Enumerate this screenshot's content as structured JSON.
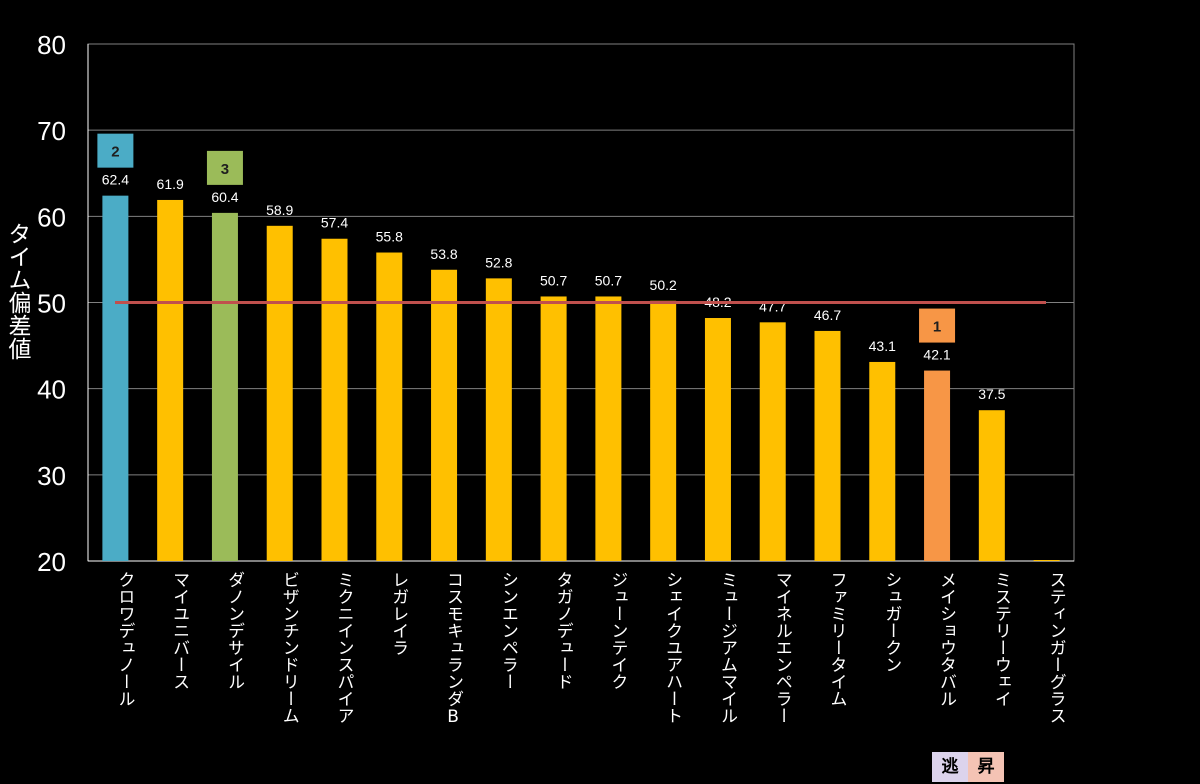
{
  "chart_data": {
    "type": "bar",
    "ylabel": "タイム偏差値",
    "ylim": [
      20,
      80
    ],
    "yticks": [
      20,
      30,
      40,
      50,
      60,
      70,
      80
    ],
    "grid": true,
    "reference_line": 50,
    "categories": [
      "クロワデュノール",
      "マイユニバース",
      "ダノンデサイル",
      "ビザンチンドリーム",
      "ミクニインスパイア",
      "レガレイラ",
      "コスモキュランダB",
      "シンエンペラー",
      "タガノデュード",
      "ジューンテイク",
      "シェイクユアハート",
      "ミュージアムマイル",
      "マイネルエンペラー",
      "ファミリータイム",
      "シュガークン",
      "メイショウタバル",
      "ミステリーウェイ",
      "スティンガーグラス"
    ],
    "values": [
      62.4,
      61.9,
      60.4,
      58.9,
      57.4,
      55.8,
      53.8,
      52.8,
      50.7,
      50.7,
      50.2,
      48.2,
      47.7,
      46.7,
      43.1,
      42.1,
      37.5,
      20
    ],
    "value_labels": [
      "62.4",
      "61.9",
      "60.4",
      "58.9",
      "57.4",
      "55.8",
      "53.8",
      "52.8",
      "50.7",
      "50.7",
      "50.2",
      "48.2",
      "47.7",
      "46.7",
      "43.1",
      "42.1",
      "37.5",
      ""
    ],
    "bar_colors": [
      "#4bacc6",
      "#ffc000",
      "#9bbb59",
      "#ffc000",
      "#ffc000",
      "#ffc000",
      "#ffc000",
      "#ffc000",
      "#ffc000",
      "#ffc000",
      "#ffc000",
      "#ffc000",
      "#ffc000",
      "#ffc000",
      "#ffc000",
      "#f79646",
      "#ffc000",
      "#ffc000"
    ],
    "rank_markers": [
      {
        "index": 0,
        "label": "2",
        "color": "#4bacc6"
      },
      {
        "index": 2,
        "label": "3",
        "color": "#9bbb59"
      },
      {
        "index": 15,
        "label": "1",
        "color": "#f79646"
      }
    ],
    "colors": {
      "background": "#000000",
      "axis": "#ffffff",
      "grid": "#808080",
      "reference_line": "#c0504d",
      "text": "#ffffff"
    }
  },
  "footer_badges": [
    "逃",
    "昇"
  ]
}
